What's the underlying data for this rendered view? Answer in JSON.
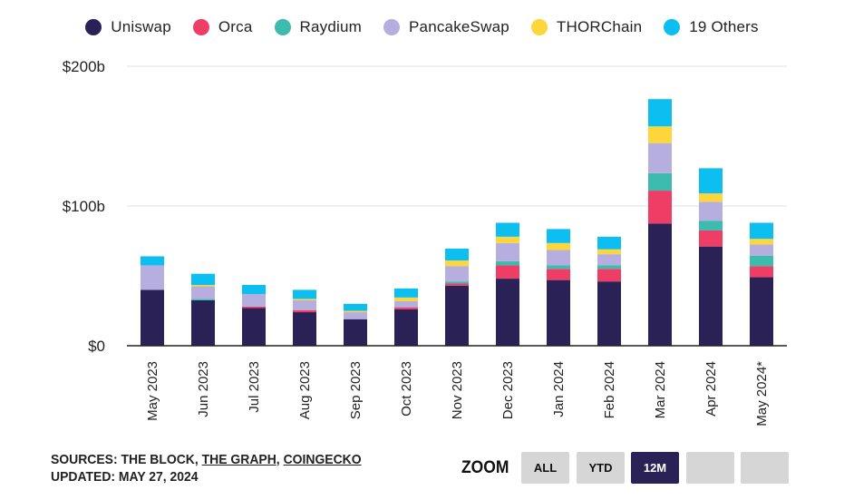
{
  "legend": [
    {
      "name": "Uniswap",
      "color": "#2a2156"
    },
    {
      "name": "Orca",
      "color": "#ef3e66"
    },
    {
      "name": "Raydium",
      "color": "#3dbcae"
    },
    {
      "name": "PancakeSwap",
      "color": "#b5aedf"
    },
    {
      "name": "THORChain",
      "color": "#fcd63b"
    },
    {
      "name": "19 Others",
      "color": "#0cbff0"
    }
  ],
  "footer": {
    "sources_prefix": "SOURCES: THE BLOCK, ",
    "link1": "THE GRAPH",
    "sep": ", ",
    "link2": "COINGECKO",
    "updated": "UPDATED: MAY 27, 2024"
  },
  "zoom": {
    "label": "ZOOM",
    "buttons": [
      {
        "label": "ALL",
        "active": false
      },
      {
        "label": "YTD",
        "active": false
      },
      {
        "label": "12M",
        "active": true
      },
      {
        "label": "",
        "active": false
      },
      {
        "label": "",
        "active": false
      }
    ]
  },
  "chart_data": {
    "type": "bar",
    "stacked": true,
    "title": "",
    "xlabel": "",
    "ylabel": "",
    "ylim": [
      0,
      200
    ],
    "y_ticks": [
      {
        "value": 0,
        "label": "$0"
      },
      {
        "value": 100,
        "label": "$100b"
      },
      {
        "value": 200,
        "label": "$200b"
      }
    ],
    "grid": true,
    "legend_position": "top",
    "categories": [
      "May 2023",
      "Jun 2023",
      "Jul 2023",
      "Aug 2023",
      "Sep 2023",
      "Oct 2023",
      "Nov 2023",
      "Dec 2023",
      "Jan 2024",
      "Feb 2024",
      "Mar 2024",
      "Apr 2024",
      "May 2024*"
    ],
    "series": [
      {
        "name": "Uniswap",
        "color": "#2a2156",
        "values": [
          40,
          32.5,
          27,
          24,
          19,
          26,
          43,
          48,
          47,
          46,
          87.5,
          71,
          49
        ]
      },
      {
        "name": "Orca",
        "color": "#ef3e66",
        "values": [
          0,
          0,
          1,
          1.5,
          0,
          1.5,
          1.5,
          9.5,
          8,
          9,
          23.5,
          11.5,
          8
        ]
      },
      {
        "name": "Raydium",
        "color": "#3dbcae",
        "values": [
          0,
          1,
          0,
          0,
          0,
          0,
          1.5,
          3,
          2.5,
          2.5,
          12.5,
          7,
          7.5
        ]
      },
      {
        "name": "PancakeSwap",
        "color": "#b5aedf",
        "values": [
          17.5,
          9,
          9,
          7,
          5,
          4.5,
          11,
          13,
          11,
          8,
          21.5,
          13.5,
          8
        ]
      },
      {
        "name": "THORChain",
        "color": "#fcd63b",
        "values": [
          0,
          1,
          0,
          1,
          1,
          2.5,
          4,
          4.5,
          5,
          3.5,
          12,
          6,
          4
        ]
      },
      {
        "name": "19 Others",
        "color": "#0cbff0",
        "values": [
          6.5,
          8,
          6.5,
          6.5,
          5,
          6.5,
          8.5,
          10,
          10,
          9,
          19.5,
          18,
          11.5
        ]
      }
    ]
  }
}
